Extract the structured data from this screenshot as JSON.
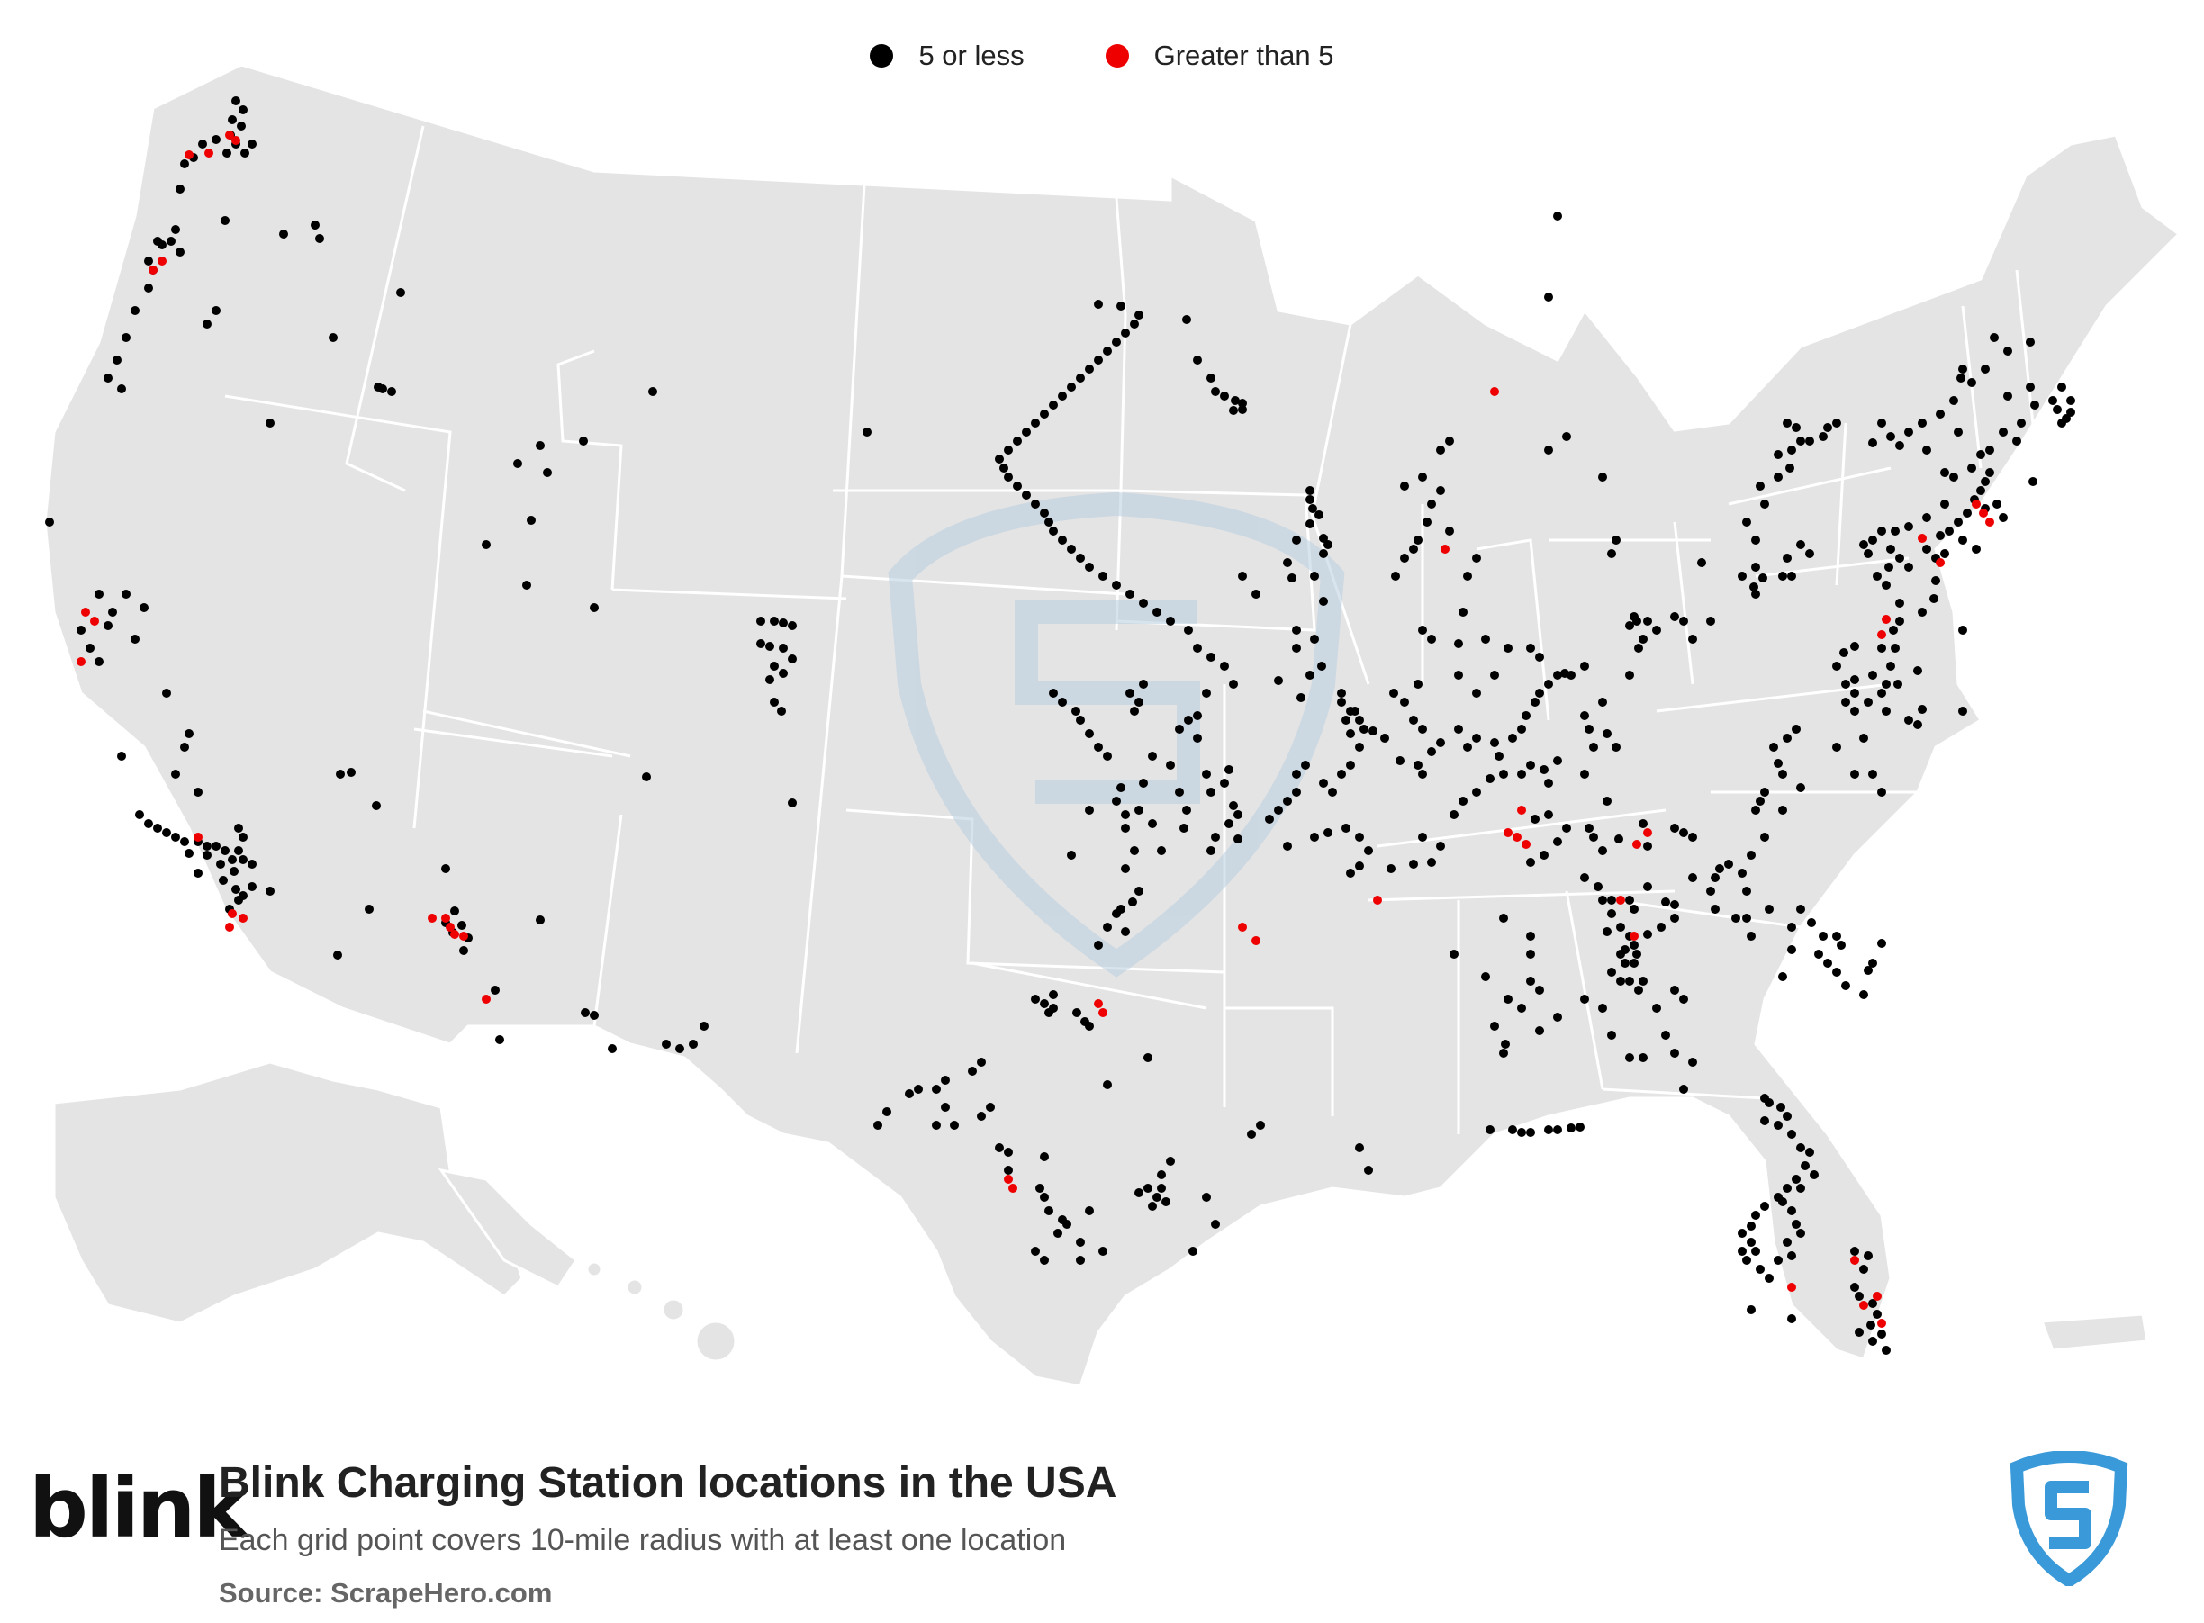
{
  "legend": {
    "items": [
      {
        "label": "5 or less",
        "color": "#000000"
      },
      {
        "label": "Greater than 5",
        "color": "#ee0000"
      }
    ]
  },
  "colors": {
    "land": "#e4e4e4",
    "border": "#ffffff",
    "watermark": "#b9cfe0",
    "shield": "#3a9ad9"
  },
  "footer": {
    "brand_logo": "blink",
    "title": "Blink Charging Station locations in the USA",
    "subtitle": "Each grid point covers 10-mile radius with at least one location",
    "source": "Source: ScrapeHero.com"
  },
  "icons": {
    "watermark": "scrapehero-shield-watermark-icon",
    "logo": "scrapehero-shield-icon"
  }
}
